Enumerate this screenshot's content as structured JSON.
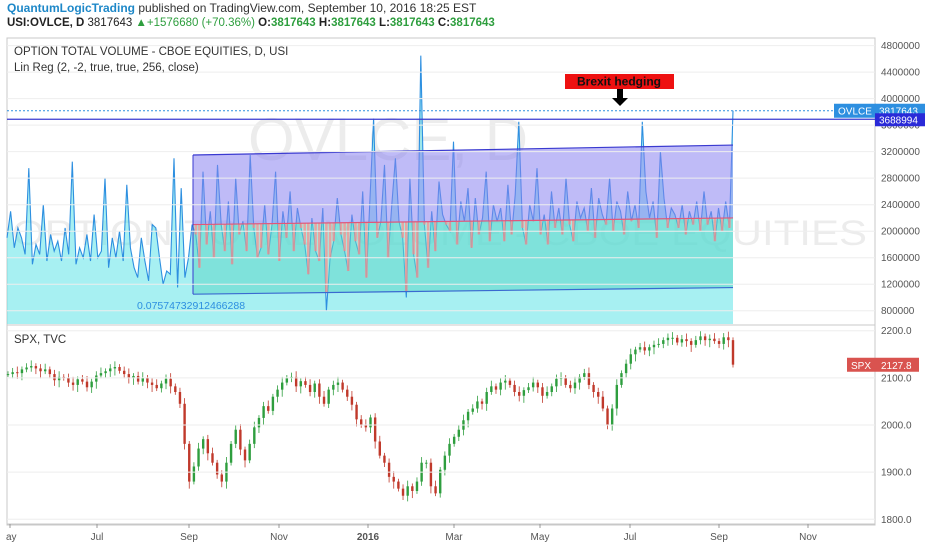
{
  "header": {
    "author": "QuantumLogicTrading",
    "published": "published on TradingView.com, September 10, 2016 18:25 EST",
    "symbol": "USI:OVLCE, D",
    "last": "3817643",
    "change": "+1576680 (+70.36%)",
    "o_label": "O:",
    "o": "3817643",
    "h_label": "H:",
    "h": "3817643",
    "l_label": "L:",
    "l": "3817643",
    "c_label": "C:",
    "c": "3817643"
  },
  "colors": {
    "volume_line": "#2d8fe0",
    "volume_fill": "#5fe3e8",
    "channel_upper": "#8a84f0",
    "channel_lower": "#5fd7c8",
    "regression_mid": "#e0567a",
    "up_candle": "#2e9e3e",
    "down_candle": "#c0392b",
    "annotation_bg": "#ee1111"
  },
  "chart_data": [
    {
      "type": "area",
      "title": "OPTION TOTAL VOLUME - CBOE EQUITIES, D, USI",
      "subtitle": "Lin Reg (2, -2, true, true, 256, close)",
      "watermark": "OVLCE, D",
      "watermark2": "OPTION TOTAL VOLUME - CBOE EQUITIES",
      "regression_label": "0.07574732912466288",
      "annotation": "Brexit hedging",
      "price_tags": [
        {
          "label": "OVLCE",
          "value": "3817643"
        },
        {
          "value": "3688994"
        }
      ],
      "ylim": [
        600000,
        4900000
      ],
      "yticks": [
        "4800000",
        "4400000",
        "4000000",
        "3600000",
        "3200000",
        "2800000",
        "2400000",
        "2000000",
        "1600000",
        "1200000",
        "800000"
      ],
      "series": [
        {
          "values": [
            1900000,
            2300000,
            1750000,
            2050000,
            1900000,
            1650000,
            2950000,
            1500000,
            1800000,
            1650000,
            2400000,
            1550000,
            1950000,
            1700000,
            1850000,
            1550000,
            2050000,
            1650000,
            3050000,
            1500000,
            1750000,
            1600000,
            1950000,
            1550000,
            2250000,
            1600000,
            1700000,
            2800000,
            1450000,
            1900000,
            1600000,
            2000000,
            1550000,
            2700000,
            1750000,
            1450000,
            1300000,
            1900000,
            1550000,
            1250000,
            2100000,
            2050000,
            1600000,
            1200000,
            1400000,
            1350000,
            3100000,
            1150000,
            2650000,
            1300000,
            1600000,
            2100000,
            1950000,
            1450000,
            2900000,
            1800000,
            2300000,
            1600000,
            3000000,
            2100000,
            1700000,
            2450000,
            1500000,
            2800000,
            1950000,
            2150000,
            1700000,
            3150000,
            2050000,
            1600000,
            1750000,
            2400000,
            1650000,
            2100000,
            2900000,
            1550000,
            2300000,
            1900000,
            2600000,
            1700000,
            2350000,
            2050000,
            1800000,
            1350000,
            2200000,
            1700000,
            1550000,
            2350000,
            800000,
            1600000,
            1850000,
            2500000,
            1950000,
            1700000,
            1400000,
            2250000,
            1850000,
            1650000,
            2600000,
            1300000,
            2500000,
            3700000,
            1900000,
            2150000,
            3000000,
            1600000,
            2400000,
            3100000,
            2150000,
            1900000,
            1000000,
            2800000,
            1650000,
            1300000,
            4650000,
            2100000,
            1450000,
            2300000,
            1700000,
            2750000,
            2250000,
            2100000,
            2000000,
            3350000,
            1800000,
            2450000,
            2150000,
            2650000,
            1750000,
            2500000,
            1950000,
            2200000,
            2900000,
            1850000,
            2400000,
            2150000,
            2350000,
            1850000,
            2700000,
            1950000,
            2550000,
            3650000,
            2050000,
            1800000,
            2400000,
            2150000,
            2950000,
            1950000,
            2250000,
            1800000,
            2600000,
            2050000,
            2350000,
            1950000,
            2800000,
            2100000,
            1850000,
            2450000,
            2200000,
            2350000,
            2000000,
            2650000,
            1900000,
            2500000,
            2250000,
            2100000,
            2800000,
            2000000,
            2450000,
            2300000,
            1950000,
            2600000,
            2150000,
            2400000,
            2050000,
            3650000,
            2600000,
            2200000,
            2450000,
            1900000,
            3200000,
            2500000,
            2050000,
            2350000,
            2250000,
            2050000,
            2400000,
            1950000,
            2300000,
            2100000,
            2450000,
            2000000,
            2600000,
            2100000,
            2300000,
            1850000,
            2350000,
            2000000,
            2450000,
            2050000,
            3817643
          ],
          "x_start": 0.0,
          "x_end": 1.0
        }
      ],
      "regression_channel": {
        "x_start_value": 0.277,
        "upper": [
          3150000,
          3300000
        ],
        "mid": [
          2100000,
          2200000
        ],
        "lower": [
          1050000,
          1150000
        ]
      }
    },
    {
      "type": "candlestick",
      "title": "SPX, TVC",
      "price_tag": {
        "label": "SPX",
        "value": "2127.8"
      },
      "ylim": [
        1790,
        2210
      ],
      "yticks": [
        "2200.0",
        "2100.0",
        "2000.0",
        "1900.0",
        "1800.0"
      ],
      "x_labels": [
        "ay",
        "Jul",
        "Sep",
        "Nov",
        "2016",
        "Mar",
        "May",
        "Jul",
        "Sep",
        "Nov"
      ],
      "closes": [
        2108,
        2112,
        2110,
        2118,
        2122,
        2125,
        2120,
        2114,
        2118,
        2108,
        2095,
        2102,
        2100,
        2090,
        2085,
        2097,
        2092,
        2080,
        2092,
        2105,
        2110,
        2114,
        2120,
        2123,
        2115,
        2108,
        2100,
        2104,
        2092,
        2100,
        2090,
        2085,
        2078,
        2088,
        2098,
        2082,
        2070,
        2045,
        1960,
        1880,
        1912,
        1950,
        1970,
        1940,
        1920,
        1895,
        1880,
        1920,
        1960,
        1990,
        1948,
        1925,
        1960,
        1995,
        2015,
        2040,
        2030,
        2060,
        2075,
        2090,
        2100,
        2102,
        2082,
        2093,
        2085,
        2070,
        2088,
        2060,
        2045,
        2075,
        2085,
        2090,
        2075,
        2060,
        2043,
        2012,
        2000,
        1995,
        2016,
        1965,
        1935,
        1920,
        1890,
        1880,
        1865,
        1850,
        1870,
        1860,
        1880,
        1920,
        1920,
        1870,
        1855,
        1905,
        1935,
        1960,
        1975,
        1990,
        2010,
        2028,
        2035,
        2050,
        2045,
        2070,
        2082,
        2075,
        2090,
        2094,
        2085,
        2070,
        2062,
        2074,
        2080,
        2090,
        2080,
        2062,
        2070,
        2082,
        2098,
        2100,
        2085,
        2078,
        2090,
        2102,
        2110,
        2085,
        2070,
        2060,
        2035,
        2000,
        2035,
        2085,
        2110,
        2130,
        2150,
        2160,
        2165,
        2158,
        2165,
        2170,
        2172,
        2180,
        2185,
        2185,
        2175,
        2182,
        2178,
        2170,
        2180,
        2188,
        2180,
        2183,
        2178,
        2172,
        2186,
        2180,
        2128
      ]
    }
  ]
}
